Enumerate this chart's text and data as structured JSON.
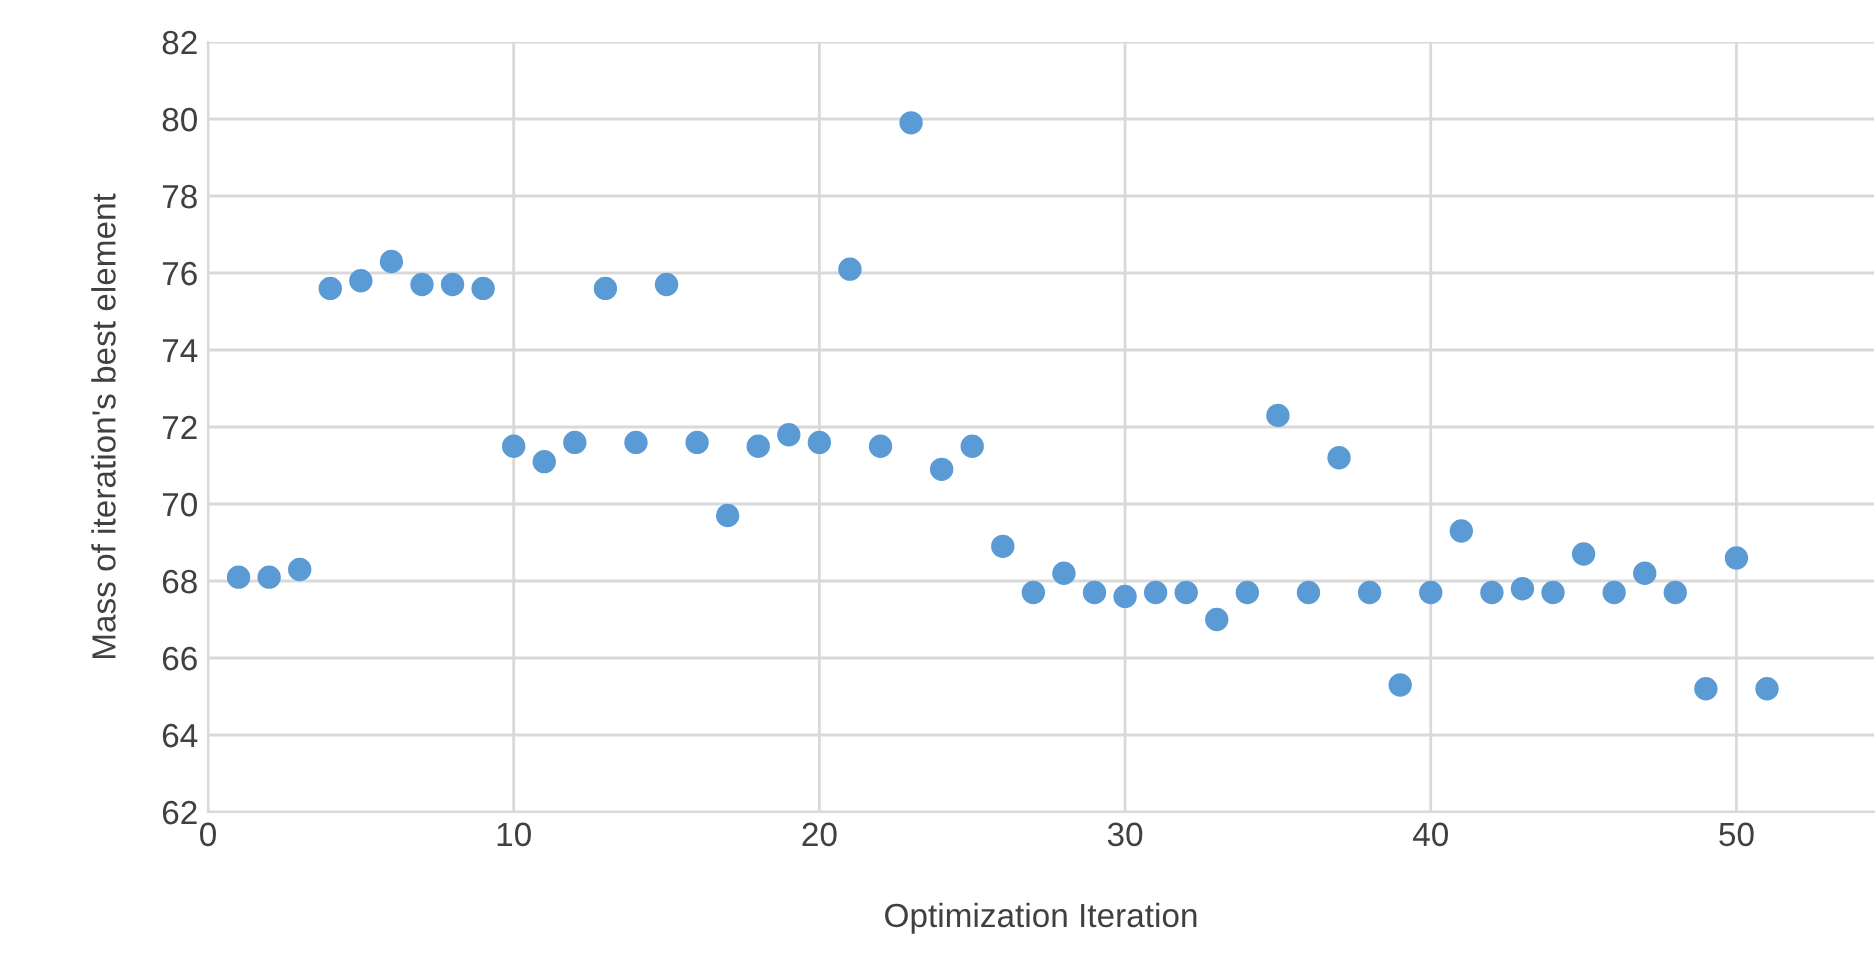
{
  "chart_data": {
    "type": "scatter",
    "xlabel": "Optimization Iteration",
    "ylabel": "Mass of iteration's best element",
    "x": [
      1,
      2,
      3,
      4,
      5,
      6,
      7,
      8,
      9,
      10,
      11,
      12,
      13,
      14,
      15,
      16,
      17,
      18,
      19,
      20,
      21,
      22,
      23,
      24,
      25,
      26,
      27,
      28,
      29,
      30,
      31,
      32,
      33,
      34,
      35,
      36,
      37,
      38,
      39,
      40,
      41,
      42,
      43,
      44,
      45,
      46,
      47,
      48,
      49,
      50,
      51
    ],
    "series": [
      {
        "color": "#5b9bd5",
        "values": [
          68.1,
          68.1,
          68.3,
          75.6,
          75.8,
          76.3,
          75.7,
          75.7,
          75.6,
          71.5,
          71.1,
          71.6,
          75.6,
          71.6,
          75.7,
          71.6,
          69.7,
          71.5,
          71.8,
          71.6,
          76.1,
          71.5,
          79.9,
          70.9,
          71.5,
          68.9,
          67.7,
          68.2,
          67.7,
          67.6,
          67.7,
          67.7,
          67.0,
          67.7,
          72.3,
          67.7,
          71.2,
          67.7,
          65.3,
          67.7,
          69.3,
          67.7,
          67.8,
          67.7,
          68.7,
          67.7,
          68.2,
          67.7,
          65.2,
          68.6,
          65.2
        ]
      }
    ],
    "xlim": [
      0,
      54.5
    ],
    "xticks": [
      0,
      10,
      20,
      30,
      40,
      50
    ],
    "ylim": [
      62,
      82
    ],
    "yticks": [
      62,
      64,
      66,
      68,
      70,
      72,
      74,
      76,
      78,
      80,
      82
    ],
    "grid": true,
    "marker": "circle",
    "legend": false
  }
}
